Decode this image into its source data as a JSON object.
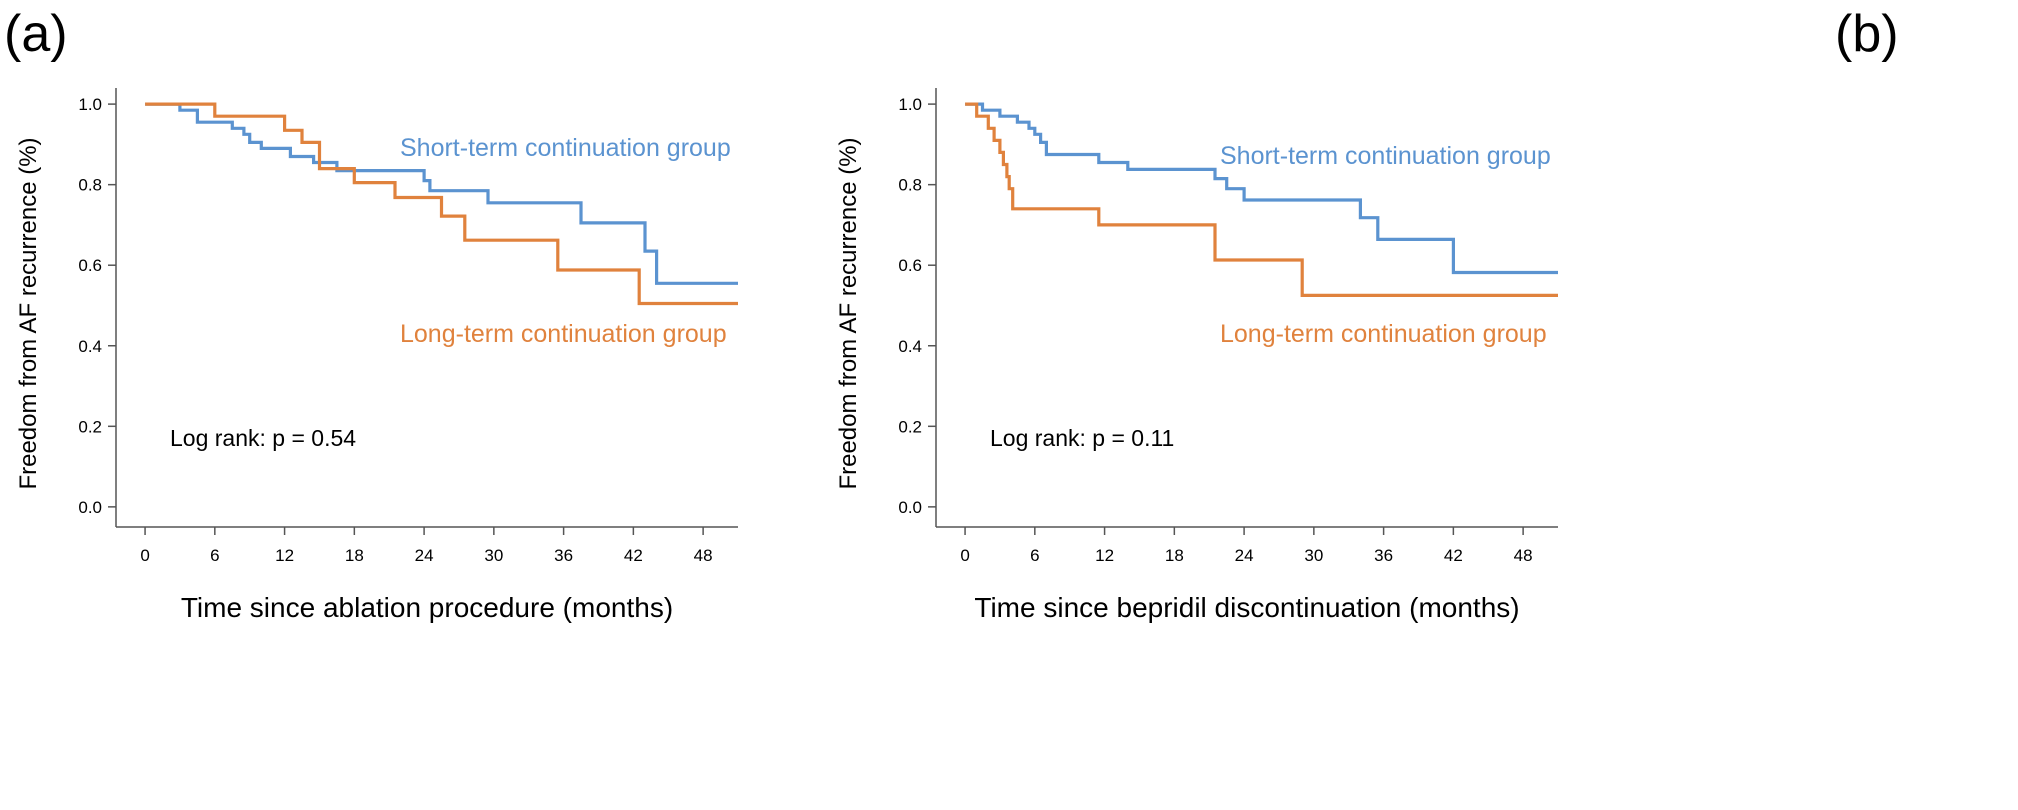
{
  "colors": {
    "short": "#5b93d0",
    "long": "#e0823d",
    "axis": "#555555",
    "text": "#000000"
  },
  "chart_data": [
    {
      "type": "line",
      "panel_label": "(a)",
      "title": "",
      "xlabel": "Time since ablation procedure (months)",
      "ylabel": "Freedom from AF recurrence (%)",
      "xlim": [
        -2.5,
        51
      ],
      "ylim": [
        -0.05,
        1.04
      ],
      "x_ticks": [
        "0",
        "6",
        "12",
        "18",
        "24",
        "30",
        "36",
        "42",
        "48"
      ],
      "y_ticks": [
        "0.0",
        "0.2",
        "0.4",
        "0.6",
        "0.8",
        "1.0"
      ],
      "annotation": "Log rank: p = 0.54",
      "series": [
        {
          "name": "Short-term continuation group",
          "color_key": "short",
          "points": [
            [
              0,
              1.0
            ],
            [
              3,
              1.0
            ],
            [
              3,
              0.985
            ],
            [
              4.5,
              0.985
            ],
            [
              4.5,
              0.955
            ],
            [
              7.5,
              0.955
            ],
            [
              7.5,
              0.94
            ],
            [
              8.5,
              0.94
            ],
            [
              8.5,
              0.925
            ],
            [
              9,
              0.925
            ],
            [
              9,
              0.905
            ],
            [
              10,
              0.905
            ],
            [
              10,
              0.89
            ],
            [
              12.5,
              0.89
            ],
            [
              12.5,
              0.87
            ],
            [
              14.5,
              0.87
            ],
            [
              14.5,
              0.855
            ],
            [
              16.5,
              0.855
            ],
            [
              16.5,
              0.835
            ],
            [
              24,
              0.835
            ],
            [
              24,
              0.81
            ],
            [
              24.5,
              0.81
            ],
            [
              24.5,
              0.785
            ],
            [
              29.5,
              0.785
            ],
            [
              29.5,
              0.755
            ],
            [
              37.5,
              0.755
            ],
            [
              37.5,
              0.705
            ],
            [
              43,
              0.705
            ],
            [
              43,
              0.635
            ],
            [
              44,
              0.635
            ],
            [
              44,
              0.555
            ],
            [
              51,
              0.555
            ]
          ]
        },
        {
          "name": "Long-term continuation group",
          "color_key": "long",
          "points": [
            [
              0,
              1.0
            ],
            [
              6,
              1.0
            ],
            [
              6,
              0.97
            ],
            [
              12,
              0.97
            ],
            [
              12,
              0.935
            ],
            [
              13.5,
              0.935
            ],
            [
              13.5,
              0.905
            ],
            [
              15,
              0.905
            ],
            [
              15,
              0.84
            ],
            [
              18,
              0.84
            ],
            [
              18,
              0.805
            ],
            [
              21.5,
              0.805
            ],
            [
              21.5,
              0.768
            ],
            [
              25.5,
              0.768
            ],
            [
              25.5,
              0.722
            ],
            [
              27.5,
              0.722
            ],
            [
              27.5,
              0.662
            ],
            [
              35.5,
              0.662
            ],
            [
              35.5,
              0.588
            ],
            [
              42.5,
              0.588
            ],
            [
              42.5,
              0.505
            ],
            [
              51,
              0.505
            ]
          ]
        }
      ]
    },
    {
      "type": "line",
      "panel_label": "(b)",
      "title": "",
      "xlabel": "Time since bepridil discontinuation (months)",
      "ylabel": "Freedom from AF recurrence (%)",
      "xlim": [
        -2.5,
        51
      ],
      "ylim": [
        -0.05,
        1.04
      ],
      "x_ticks": [
        "0",
        "6",
        "12",
        "18",
        "24",
        "30",
        "36",
        "42",
        "48"
      ],
      "y_ticks": [
        "0.0",
        "0.2",
        "0.4",
        "0.6",
        "0.8",
        "1.0"
      ],
      "annotation": "Log rank: p = 0.11",
      "series": [
        {
          "name": "Short-term continuation group",
          "color_key": "short",
          "points": [
            [
              0,
              1.0
            ],
            [
              1.5,
              1.0
            ],
            [
              1.5,
              0.985
            ],
            [
              3,
              0.985
            ],
            [
              3,
              0.97
            ],
            [
              4.5,
              0.97
            ],
            [
              4.5,
              0.955
            ],
            [
              5.5,
              0.955
            ],
            [
              5.5,
              0.94
            ],
            [
              6,
              0.94
            ],
            [
              6,
              0.925
            ],
            [
              6.5,
              0.925
            ],
            [
              6.5,
              0.905
            ],
            [
              7,
              0.905
            ],
            [
              7,
              0.875
            ],
            [
              11.5,
              0.875
            ],
            [
              11.5,
              0.855
            ],
            [
              14,
              0.855
            ],
            [
              14,
              0.838
            ],
            [
              21.5,
              0.838
            ],
            [
              21.5,
              0.815
            ],
            [
              22.5,
              0.815
            ],
            [
              22.5,
              0.79
            ],
            [
              24,
              0.79
            ],
            [
              24,
              0.762
            ],
            [
              34,
              0.762
            ],
            [
              34,
              0.718
            ],
            [
              35.5,
              0.718
            ],
            [
              35.5,
              0.664
            ],
            [
              42,
              0.664
            ],
            [
              42,
              0.582
            ],
            [
              51,
              0.582
            ]
          ]
        },
        {
          "name": "Long-term continuation group",
          "color_key": "long",
          "points": [
            [
              0,
              1.0
            ],
            [
              1,
              1.0
            ],
            [
              1,
              0.97
            ],
            [
              2,
              0.97
            ],
            [
              2,
              0.94
            ],
            [
              2.5,
              0.94
            ],
            [
              2.5,
              0.91
            ],
            [
              3,
              0.91
            ],
            [
              3,
              0.88
            ],
            [
              3.3,
              0.88
            ],
            [
              3.3,
              0.85
            ],
            [
              3.6,
              0.85
            ],
            [
              3.6,
              0.82
            ],
            [
              3.8,
              0.82
            ],
            [
              3.8,
              0.79
            ],
            [
              4.1,
              0.79
            ],
            [
              4.1,
              0.74
            ],
            [
              11.5,
              0.74
            ],
            [
              11.5,
              0.7
            ],
            [
              21.5,
              0.7
            ],
            [
              21.5,
              0.613
            ],
            [
              29,
              0.613
            ],
            [
              29,
              0.525
            ],
            [
              51,
              0.525
            ]
          ]
        }
      ]
    }
  ]
}
